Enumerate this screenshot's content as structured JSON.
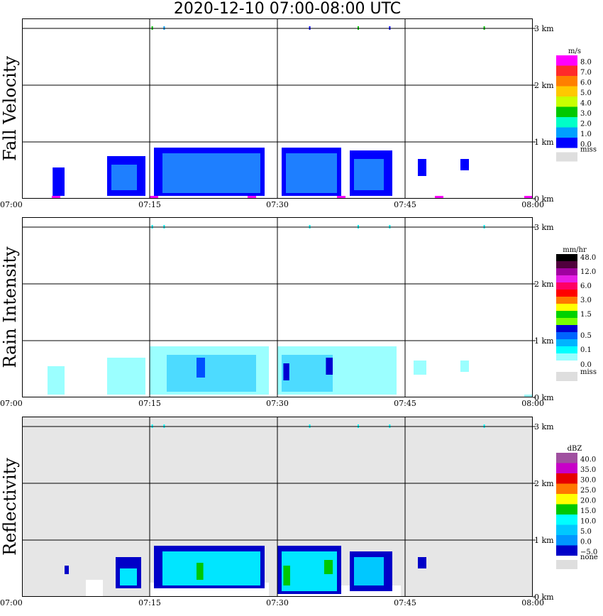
{
  "title": "2020-12-10   07:00-08:00 UTC",
  "panels": [
    {
      "ylabel": "Fall Velocity",
      "background": "#ffffff",
      "unit": "m/s",
      "legend": [
        {
          "label": "8.0",
          "color": "#ff00ff"
        },
        {
          "label": "7.0",
          "color": "#ff2a2a"
        },
        {
          "label": "6.0",
          "color": "#ff7f00"
        },
        {
          "label": "5.0",
          "color": "#ffc800"
        },
        {
          "label": "4.0",
          "color": "#c8ff00"
        },
        {
          "label": "3.0",
          "color": "#00c800"
        },
        {
          "label": "2.0",
          "color": "#00ffc8"
        },
        {
          "label": "1.0",
          "color": "#00a0ff"
        },
        {
          "label": "0.0",
          "color": "#0000ff"
        }
      ],
      "miss_label": "miss",
      "echoes": [
        {
          "t0": 3.6,
          "t1": 5.0,
          "h0": 0.05,
          "h1": 0.55,
          "color": "#0000ff"
        },
        {
          "t0": 10.0,
          "t1": 14.5,
          "h0": 0.05,
          "h1": 0.75,
          "color": "#0000ff"
        },
        {
          "t0": 10.5,
          "t1": 13.5,
          "h0": 0.15,
          "h1": 0.6,
          "color": "#1e7fff"
        },
        {
          "t0": 15.5,
          "t1": 28.5,
          "h0": 0.05,
          "h1": 0.9,
          "color": "#0000ff"
        },
        {
          "t0": 16.5,
          "t1": 28.0,
          "h0": 0.1,
          "h1": 0.8,
          "color": "#1e7fff"
        },
        {
          "t0": 30.5,
          "t1": 37.5,
          "h0": 0.05,
          "h1": 0.9,
          "color": "#0000ff"
        },
        {
          "t0": 31.0,
          "t1": 37.0,
          "h0": 0.1,
          "h1": 0.8,
          "color": "#1e7fff"
        },
        {
          "t0": 38.5,
          "t1": 43.5,
          "h0": 0.05,
          "h1": 0.85,
          "color": "#0000ff"
        },
        {
          "t0": 39.0,
          "t1": 42.5,
          "h0": 0.15,
          "h1": 0.7,
          "color": "#1e7fff"
        },
        {
          "t0": 46.5,
          "t1": 47.5,
          "h0": 0.4,
          "h1": 0.7,
          "color": "#0000ff"
        },
        {
          "t0": 51.5,
          "t1": 52.5,
          "h0": 0.5,
          "h1": 0.7,
          "color": "#0000ff"
        }
      ],
      "ground": [
        {
          "t0": 3.5,
          "t1": 4.5,
          "color": "#ff00ff"
        },
        {
          "t0": 15.0,
          "t1": 16.0,
          "color": "#ff00ff"
        },
        {
          "t0": 26.5,
          "t1": 27.5,
          "color": "#ff00ff"
        },
        {
          "t0": 37.0,
          "t1": 38.0,
          "color": "#ff00ff"
        },
        {
          "t0": 48.5,
          "t1": 49.5,
          "color": "#ff00ff"
        },
        {
          "t0": 59.0,
          "t1": 60.0,
          "color": "#ff00ff"
        }
      ],
      "top_marks": [
        {
          "t": 15.3,
          "color": "#00c800"
        },
        {
          "t": 16.7,
          "color": "#00a0ff"
        },
        {
          "t": 33.8,
          "color": "#0000ff"
        },
        {
          "t": 39.5,
          "color": "#00c800"
        },
        {
          "t": 43.2,
          "color": "#0000ff"
        },
        {
          "t": 54.3,
          "color": "#00c800"
        }
      ]
    },
    {
      "ylabel": "Rain Intensity",
      "background": "#ffffff",
      "unit": "mm/hr",
      "legend": [
        {
          "label": "48.0",
          "color": "#000000"
        },
        {
          "label": "",
          "color": "#50003c"
        },
        {
          "label": "12.0",
          "color": "#a000a0"
        },
        {
          "label": "",
          "color": "#e61ee6"
        },
        {
          "label": "6.0",
          "color": "#ff0064"
        },
        {
          "label": "",
          "color": "#ff0000"
        },
        {
          "label": "3.0",
          "color": "#ff7800"
        },
        {
          "label": "",
          "color": "#ffff00"
        },
        {
          "label": "1.5",
          "color": "#00d200"
        },
        {
          "label": "",
          "color": "#78ff00"
        },
        {
          "label": "",
          "color": "#0000d2"
        },
        {
          "label": "0.5",
          "color": "#0064ff"
        },
        {
          "label": "",
          "color": "#00b4ff"
        },
        {
          "label": "0.1",
          "color": "#00ffff"
        },
        {
          "label": "",
          "color": "#96ffff"
        }
      ],
      "zero_label": "0.0",
      "miss_label": "miss",
      "echoes": [
        {
          "t0": 3.0,
          "t1": 5.0,
          "h0": 0.05,
          "h1": 0.55,
          "color": "#9bffff"
        },
        {
          "t0": 10.0,
          "t1": 14.5,
          "h0": 0.05,
          "h1": 0.7,
          "color": "#9bffff"
        },
        {
          "t0": 15.0,
          "t1": 29.0,
          "h0": 0.05,
          "h1": 0.9,
          "color": "#9bffff"
        },
        {
          "t0": 17.0,
          "t1": 27.5,
          "h0": 0.1,
          "h1": 0.75,
          "color": "#4ddbff"
        },
        {
          "t0": 20.5,
          "t1": 21.5,
          "h0": 0.35,
          "h1": 0.7,
          "color": "#0050ff"
        },
        {
          "t0": 30.0,
          "t1": 44.0,
          "h0": 0.05,
          "h1": 0.9,
          "color": "#9bffff"
        },
        {
          "t0": 30.5,
          "t1": 36.5,
          "h0": 0.1,
          "h1": 0.75,
          "color": "#4ddbff"
        },
        {
          "t0": 30.7,
          "t1": 31.4,
          "h0": 0.3,
          "h1": 0.6,
          "color": "#0000d2"
        },
        {
          "t0": 35.7,
          "t1": 36.5,
          "h0": 0.4,
          "h1": 0.7,
          "color": "#0000d2"
        },
        {
          "t0": 46.0,
          "t1": 47.5,
          "h0": 0.4,
          "h1": 0.65,
          "color": "#9bffff"
        },
        {
          "t0": 51.5,
          "t1": 52.5,
          "h0": 0.45,
          "h1": 0.65,
          "color": "#9bffff"
        }
      ],
      "ground": [
        {
          "t0": 59.0,
          "t1": 60.0,
          "color": "#9bffff"
        }
      ],
      "top_marks": [
        {
          "t": 15.3,
          "color": "#00ffff"
        },
        {
          "t": 16.7,
          "color": "#00ffff"
        },
        {
          "t": 33.8,
          "color": "#00ffff"
        },
        {
          "t": 39.5,
          "color": "#00ffff"
        },
        {
          "t": 43.2,
          "color": "#00ffff"
        },
        {
          "t": 54.3,
          "color": "#00ffff"
        }
      ]
    },
    {
      "ylabel": "Reflectivity",
      "background": "#e6e6e6",
      "unit": "dBZ",
      "legend": [
        {
          "label": "40.0",
          "color": "#a050a0"
        },
        {
          "label": "35.0",
          "color": "#c800c8"
        },
        {
          "label": "30.0",
          "color": "#e60000"
        },
        {
          "label": "25.0",
          "color": "#ff7800"
        },
        {
          "label": "20.0",
          "color": "#ffff00"
        },
        {
          "label": "15.0",
          "color": "#00c800"
        },
        {
          "label": "10.0",
          "color": "#00ffff"
        },
        {
          "label": "5.0",
          "color": "#00c8ff"
        },
        {
          "label": "0.0",
          "color": "#0096ff"
        },
        {
          "label": "−5.0",
          "color": "#0000c8"
        }
      ],
      "miss_label": "none",
      "echoes": [
        {
          "t0": 7.5,
          "t1": 9.5,
          "h0": 0.0,
          "h1": 0.3,
          "color": "#ffffff"
        },
        {
          "t0": 15.0,
          "t1": 29.0,
          "h0": 0.0,
          "h1": 0.25,
          "color": "#ffffff"
        },
        {
          "t0": 30.0,
          "t1": 44.5,
          "h0": 0.0,
          "h1": 0.2,
          "color": "#ffffff"
        },
        {
          "t0": 15.5,
          "t1": 28.5,
          "h0": 0.15,
          "h1": 0.9,
          "color": "#0000c8"
        },
        {
          "t0": 16.5,
          "t1": 28.0,
          "h0": 0.2,
          "h1": 0.8,
          "color": "#00e6ff"
        },
        {
          "t0": 20.5,
          "t1": 21.3,
          "h0": 0.3,
          "h1": 0.6,
          "color": "#00c800"
        },
        {
          "t0": 30.0,
          "t1": 37.5,
          "h0": 0.05,
          "h1": 0.9,
          "color": "#0000c8"
        },
        {
          "t0": 30.5,
          "t1": 37.0,
          "h0": 0.1,
          "h1": 0.8,
          "color": "#00e6ff"
        },
        {
          "t0": 30.7,
          "t1": 31.5,
          "h0": 0.2,
          "h1": 0.55,
          "color": "#00c800"
        },
        {
          "t0": 35.5,
          "t1": 36.5,
          "h0": 0.4,
          "h1": 0.65,
          "color": "#00c800"
        },
        {
          "t0": 38.5,
          "t1": 43.5,
          "h0": 0.1,
          "h1": 0.8,
          "color": "#0000c8"
        },
        {
          "t0": 39.0,
          "t1": 42.5,
          "h0": 0.2,
          "h1": 0.7,
          "color": "#00c8ff"
        },
        {
          "t0": 11.0,
          "t1": 14.0,
          "h0": 0.15,
          "h1": 0.7,
          "color": "#0000c8"
        },
        {
          "t0": 11.5,
          "t1": 13.5,
          "h0": 0.2,
          "h1": 0.5,
          "color": "#00e6ff"
        },
        {
          "t0": 5.0,
          "t1": 5.5,
          "h0": 0.4,
          "h1": 0.55,
          "color": "#0000c8"
        },
        {
          "t0": 46.5,
          "t1": 47.5,
          "h0": 0.5,
          "h1": 0.7,
          "color": "#0000c8"
        }
      ],
      "ground": [],
      "top_marks": [
        {
          "t": 15.3,
          "color": "#00ffff"
        },
        {
          "t": 16.7,
          "color": "#00ffff"
        },
        {
          "t": 33.8,
          "color": "#00ffff"
        },
        {
          "t": 39.5,
          "color": "#00ffff"
        },
        {
          "t": 43.2,
          "color": "#00ffff"
        },
        {
          "t": 54.3,
          "color": "#00ffff"
        }
      ]
    }
  ],
  "chart_data": {
    "type": "heatmap",
    "title": "2020-12-10   07:00-08:00 UTC",
    "x_tick_labels": [
      "07:00",
      "07:15",
      "07:30",
      "07:45",
      "08:00"
    ],
    "y_tick_labels": [
      "0 km",
      "1 km",
      "2 km",
      "3 km"
    ],
    "xlim": [
      0,
      60
    ],
    "ylim": [
      0,
      3.0
    ],
    "grid": true,
    "legend_placement": "right",
    "panel_labels": [
      "Fall Velocity",
      "Rain Intensity",
      "Reflectivity"
    ]
  }
}
